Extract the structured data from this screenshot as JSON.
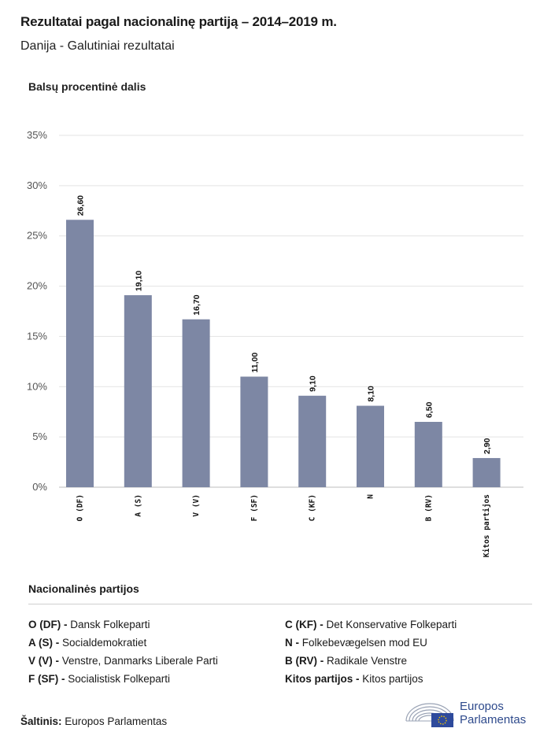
{
  "header": {
    "title": "Rezultatai pagal nacionalinę partiją – 2014–2019 m.",
    "subtitle": "Danija - Galutiniai rezultatai",
    "axis_title": "Balsų procentinė dalis"
  },
  "chart_data": {
    "type": "bar",
    "categories": [
      "O (DF)",
      "A (S)",
      "V (V)",
      "F (SF)",
      "C (KF)",
      "N",
      "B (RV)",
      "Kitos partijos"
    ],
    "values": [
      26.6,
      19.1,
      16.7,
      11.0,
      9.1,
      8.1,
      6.5,
      2.9
    ],
    "value_labels": [
      "26,60",
      "19,10",
      "16,70",
      "11,00",
      "9,10",
      "8,10",
      "6,50",
      "2,90"
    ],
    "ylim": [
      0,
      35
    ],
    "yticks": [
      0,
      5,
      10,
      15,
      20,
      25,
      30,
      35
    ],
    "ytick_labels": [
      "0%",
      "5%",
      "10%",
      "15%",
      "20%",
      "25%",
      "30%",
      "35%"
    ],
    "ylabel": "Balsų procentinė dalis",
    "grid": true,
    "bar_color": "#7d87a4"
  },
  "legend": {
    "title": "Nacionalinės partijos",
    "items": [
      {
        "code": "O (DF) -",
        "name": "Dansk Folkeparti"
      },
      {
        "code": "A (S) -",
        "name": "Socialdemokratiet"
      },
      {
        "code": "V (V) -",
        "name": "Venstre, Danmarks Liberale Parti"
      },
      {
        "code": "F (SF) -",
        "name": "Socialistisk Folkeparti"
      },
      {
        "code": "C (KF) -",
        "name": " Det Konservative Folkeparti"
      },
      {
        "code": "N -",
        "name": "Folkebevægelsen mod EU"
      },
      {
        "code": "B (RV) -",
        "name": "Radikale Venstre"
      },
      {
        "code": "Kitos partijos -",
        "name": "Kitos partijos"
      }
    ]
  },
  "source": {
    "label": "Šaltinis:",
    "value": "Europos Parlamentas"
  },
  "logo": {
    "line1": "Europos",
    "line2": "Parlamentas",
    "icon": "european-parliament-emblem"
  }
}
